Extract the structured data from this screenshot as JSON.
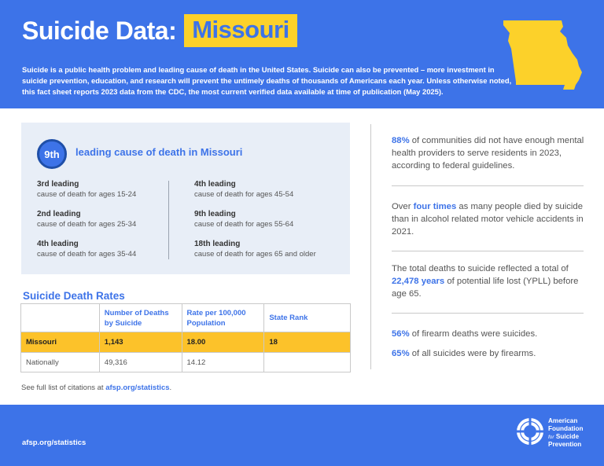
{
  "header": {
    "title_prefix": "Suicide Data:",
    "title_state": "Missouri",
    "intro": "Suicide is a public health problem and leading cause of death in the United States. Suicide can also be prevented – more investment in suicide prevention, education, and research will prevent the untimely deaths of thousands of Americans each year. Unless otherwise noted, this fact sheet reports 2023 data from the CDC, the most current verified data available at time of publication (May 2025).",
    "map_icon": "missouri-state-outline",
    "colors": {
      "primary": "#3d73e8",
      "accent": "#fcd12a"
    }
  },
  "leading_cause": {
    "rank": "9th",
    "label": "leading cause of death in Missouri",
    "left": [
      {
        "rank": "3rd leading",
        "desc": "cause of death for ages 15-24"
      },
      {
        "rank": "2nd leading",
        "desc": "cause of death for ages 25-34"
      },
      {
        "rank": "4th leading",
        "desc": "cause of death for ages 35-44"
      }
    ],
    "right": [
      {
        "rank": "4th leading",
        "desc": "cause of death for ages 45-54"
      },
      {
        "rank": "9th leading",
        "desc": "cause of death for ages 55-64"
      },
      {
        "rank": "18th leading",
        "desc": "cause of death for ages 65 and older"
      }
    ]
  },
  "rates": {
    "title": "Suicide Death Rates",
    "headers": [
      "",
      "Number of Deaths by Suicide",
      "Rate per 100,000 Population",
      "State Rank"
    ],
    "state_row": {
      "name": "Missouri",
      "deaths": "1,143",
      "rate": "18.00",
      "rank": "18"
    },
    "national_row": {
      "name": "Nationally",
      "deaths": "49,316",
      "rate": "14.12",
      "rank": ""
    }
  },
  "citations": {
    "text": "See full list of citations at ",
    "link": "afsp.org/statistics",
    "end": "."
  },
  "facts": {
    "f1": {
      "hl": "88%",
      "rest": " of communities did not have enough mental health providers to serve residents in 2023, according to federal guidelines."
    },
    "f2": {
      "pre": "Over ",
      "hl": "four times",
      "rest": " as many people died by suicide than in alcohol related motor vehicle accidents in 2021."
    },
    "f3": {
      "pre": "The total deaths to suicide reflected a total of ",
      "hl": "22,478 years",
      "rest": " of potential life lost (YPLL) before age 65."
    },
    "f4": {
      "hl": "56%",
      "rest": " of firearm deaths were suicides."
    },
    "f5": {
      "hl": "65%",
      "rest": " of all suicides were by firearms."
    }
  },
  "footer": {
    "link": "afsp.org/statistics",
    "logo_icon": "life-ring-icon",
    "logo_line1": "American",
    "logo_line2": "Foundation",
    "logo_for": "for",
    "logo_line3": "Suicide",
    "logo_line4": "Prevention"
  }
}
